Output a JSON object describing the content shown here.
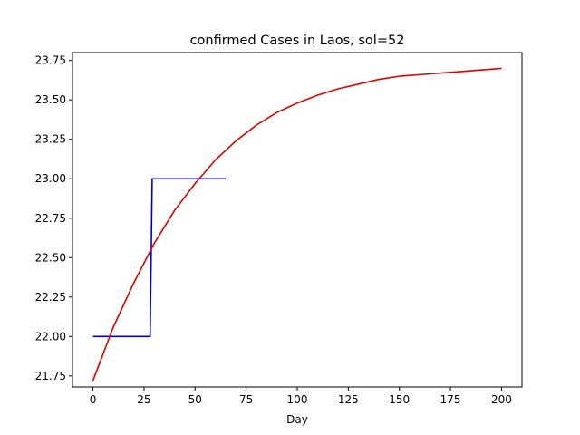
{
  "chart_data": {
    "type": "line",
    "title": "confirmed Cases in Laos, sol=52",
    "xlabel": "Day",
    "ylabel": "",
    "xlim": [
      -10,
      210
    ],
    "ylim": [
      21.68,
      23.8
    ],
    "x_ticks": [
      0,
      25,
      50,
      75,
      100,
      125,
      150,
      175,
      200
    ],
    "x_tick_labels": [
      "0",
      "25",
      "50",
      "75",
      "100",
      "125",
      "150",
      "175",
      "200"
    ],
    "y_ticks": [
      21.75,
      22.0,
      22.25,
      22.5,
      22.75,
      23.0,
      23.25,
      23.5,
      23.75
    ],
    "y_tick_labels": [
      "21.75",
      "22.00",
      "22.25",
      "22.50",
      "22.75",
      "23.00",
      "23.25",
      "23.50",
      "23.75"
    ],
    "grid": false,
    "legend": "none",
    "series": [
      {
        "color": "#0000cc",
        "style": "step",
        "x": [
          0,
          28,
          29,
          65
        ],
        "y": [
          22.0,
          22.0,
          23.0,
          23.0
        ]
      },
      {
        "color": "#dd0000",
        "style": "curve",
        "x": [
          0,
          10,
          20,
          30,
          40,
          50,
          60,
          70,
          80,
          90,
          100,
          110,
          120,
          130,
          140,
          150,
          160,
          170,
          180,
          190,
          200
        ],
        "y": [
          21.72,
          22.06,
          22.34,
          22.59,
          22.8,
          22.97,
          23.12,
          23.24,
          23.34,
          23.42,
          23.48,
          23.53,
          23.57,
          23.6,
          23.63,
          23.65,
          23.66,
          23.67,
          23.68,
          23.69,
          23.7
        ]
      }
    ]
  }
}
